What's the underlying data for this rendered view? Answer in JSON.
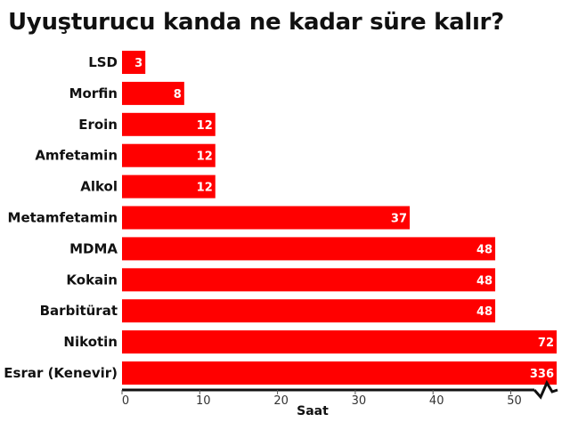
{
  "title": "Uyuşturucu kanda ne kadar süre kalır?",
  "colors": {
    "bar": "#ff0000",
    "axis": "#111111"
  },
  "chart_data": {
    "type": "bar",
    "orientation": "horizontal",
    "title": "Uyuşturucu kanda ne kadar süre kalır?",
    "xlabel": "Saat",
    "ylabel": "",
    "xlim": [
      0,
      55
    ],
    "x_ticks": [
      0,
      10,
      20,
      30,
      40,
      50
    ],
    "axis_break": true,
    "grid": false,
    "categories": [
      "LSD",
      "Morfin",
      "Eroin",
      "Amfetamin",
      "Alkol",
      "Metamfetamin",
      "MDMA",
      "Kokain",
      "Barbitürat",
      "Nikotin",
      "Esrar (Kenevir)"
    ],
    "values": [
      3,
      8,
      12,
      12,
      12,
      37,
      48,
      48,
      48,
      72,
      336
    ]
  }
}
